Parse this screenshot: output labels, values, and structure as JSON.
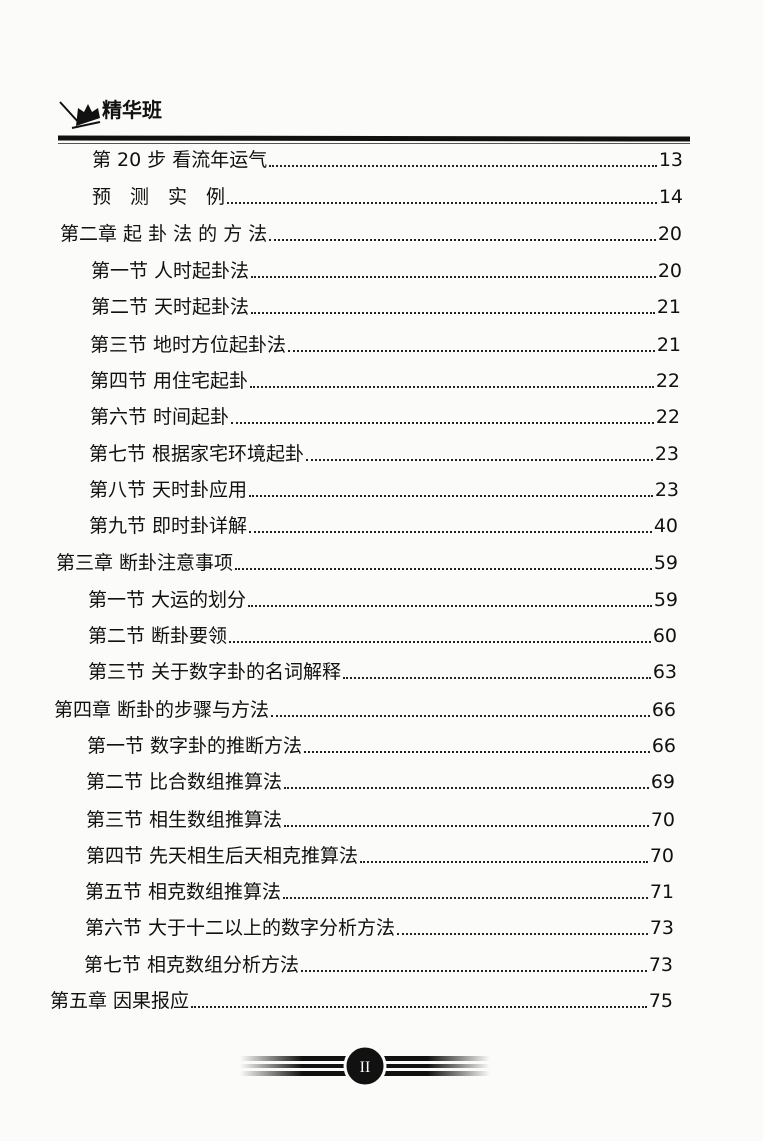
{
  "header": {
    "brand": "精华班",
    "logo_icon": "book-quill-icon"
  },
  "toc": [
    {
      "title": "第 20 步 看流年运气",
      "page": "13",
      "level": 2
    },
    {
      "title": "预　测　实　例",
      "page": "14",
      "level": 2
    },
    {
      "title": "第二章 起 卦 法 的 方 法",
      "page": "20",
      "level": 1
    },
    {
      "title": "第一节 人时起卦法",
      "page": "20",
      "level": 2
    },
    {
      "title": "第二节 天时起卦法",
      "page": "21",
      "level": 2
    },
    {
      "title": "第三节 地时方位起卦法",
      "page": "21",
      "level": 2
    },
    {
      "title": "第四节 用住宅起卦",
      "page": "22",
      "level": 2
    },
    {
      "title": "第六节 时间起卦",
      "page": "22",
      "level": 2
    },
    {
      "title": "第七节 根据家宅环境起卦",
      "page": "23",
      "level": 2
    },
    {
      "title": "第八节 天时卦应用",
      "page": "23",
      "level": 2
    },
    {
      "title": "第九节 即时卦详解",
      "page": "40",
      "level": 2
    },
    {
      "title": "第三章 断卦注意事项",
      "page": "59",
      "level": 1
    },
    {
      "title": "第一节 大运的划分",
      "page": "59",
      "level": 2
    },
    {
      "title": "第二节 断卦要领",
      "page": "60",
      "level": 2
    },
    {
      "title": "第三节 关于数字卦的名词解释",
      "page": "63",
      "level": 2
    },
    {
      "title": "第四章 断卦的步骤与方法",
      "page": "66",
      "level": 1
    },
    {
      "title": "第一节 数字卦的推断方法",
      "page": "66",
      "level": 2
    },
    {
      "title": "第二节 比合数组推算法",
      "page": "69",
      "level": 2
    },
    {
      "title": "第三节 相生数组推算法",
      "page": "70",
      "level": 2
    },
    {
      "title": "第四节 先天相生后天相克推算法",
      "page": "70",
      "level": 2
    },
    {
      "title": "第五节 相克数组推算法",
      "page": "71",
      "level": 2
    },
    {
      "title": "第六节 大于十二以上的数字分析方法",
      "page": "73",
      "level": 2
    },
    {
      "title": "第七节 相克数组分析方法",
      "page": "73",
      "level": 2
    },
    {
      "title": "第五章 因果报应",
      "page": "75",
      "level": 1
    }
  ],
  "footer": {
    "page_number": "II"
  }
}
